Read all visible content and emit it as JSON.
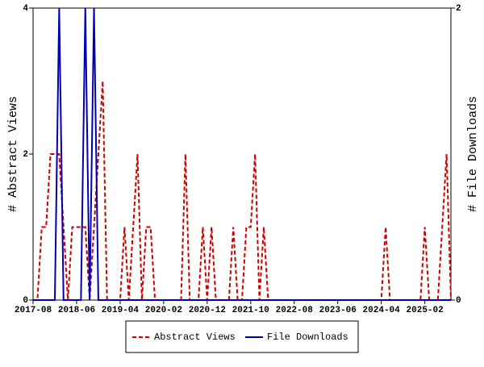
{
  "chart_data": {
    "type": "line",
    "ylabel": "# Abstract Views",
    "y2label": "# File Downloads",
    "categories": [
      "2017-08",
      null,
      null,
      null,
      null,
      null,
      null,
      null,
      null,
      null,
      "2018-06",
      null,
      null,
      null,
      null,
      null,
      null,
      null,
      null,
      null,
      "2019-04",
      null,
      null,
      null,
      null,
      null,
      null,
      null,
      null,
      null,
      "2020-02",
      null,
      null,
      null,
      null,
      null,
      null,
      null,
      null,
      null,
      "2020-12",
      null,
      null,
      null,
      null,
      null,
      null,
      null,
      null,
      null,
      "2021-10",
      null,
      null,
      null,
      null,
      null,
      null,
      null,
      null,
      null,
      "2022-08",
      null,
      null,
      null,
      null,
      null,
      null,
      null,
      null,
      null,
      "2023-06",
      null,
      null,
      null,
      null,
      null,
      null,
      null,
      null,
      null,
      "2024-04",
      null,
      null,
      null,
      null,
      null,
      null,
      null,
      null,
      null,
      "2025-02",
      null,
      null,
      null,
      null,
      null,
      null
    ],
    "series": [
      {
        "name": "Abstract Views",
        "color": "#cc0000",
        "dash": true,
        "axis": "y",
        "values": [
          0,
          0,
          1,
          1,
          2,
          2,
          2,
          1,
          0,
          1,
          1,
          1,
          1,
          0,
          1,
          2,
          3,
          0,
          0,
          0,
          0,
          1,
          0,
          1,
          2,
          0,
          1,
          1,
          0,
          0,
          0,
          0,
          0,
          0,
          0,
          2,
          0,
          0,
          0,
          1,
          0,
          1,
          0,
          0,
          0,
          0,
          1,
          0,
          0,
          1,
          1,
          2,
          0,
          1,
          0,
          0,
          0,
          0,
          0,
          0,
          0,
          0,
          0,
          0,
          0,
          0,
          0,
          0,
          0,
          0,
          0,
          0,
          0,
          0,
          0,
          0,
          0,
          0,
          0,
          0,
          0,
          1,
          0,
          0,
          0,
          0,
          0,
          0,
          0,
          0,
          1,
          0,
          0,
          0,
          1,
          2,
          0
        ]
      },
      {
        "name": "File Downloads",
        "color": "#0000b0",
        "dash": false,
        "axis": "y2",
        "values": [
          0,
          0,
          0,
          0,
          0,
          0,
          2,
          0,
          0,
          0,
          0,
          0,
          2,
          0,
          2,
          0,
          0,
          0,
          0,
          0,
          0,
          0,
          0,
          0,
          0,
          0,
          0,
          0,
          0,
          0,
          0,
          0,
          0,
          0,
          0,
          0,
          0,
          0,
          0,
          0,
          0,
          0,
          0,
          0,
          0,
          0,
          0,
          0,
          0,
          0,
          0,
          0,
          0,
          0,
          0,
          0,
          0,
          0,
          0,
          0,
          0,
          0,
          0,
          0,
          0,
          0,
          0,
          0,
          0,
          0,
          0,
          0,
          0,
          0,
          0,
          0,
          0,
          0,
          0,
          0,
          0,
          0,
          0,
          0,
          0,
          0,
          0,
          0,
          0,
          0,
          0,
          0,
          0,
          0,
          0,
          0,
          0
        ]
      }
    ],
    "ylim": [
      0,
      4
    ],
    "yticks": [
      0,
      2,
      4
    ],
    "y2lim": [
      0,
      2
    ],
    "y2ticks": [
      0,
      2
    ],
    "legend": "bottom"
  }
}
